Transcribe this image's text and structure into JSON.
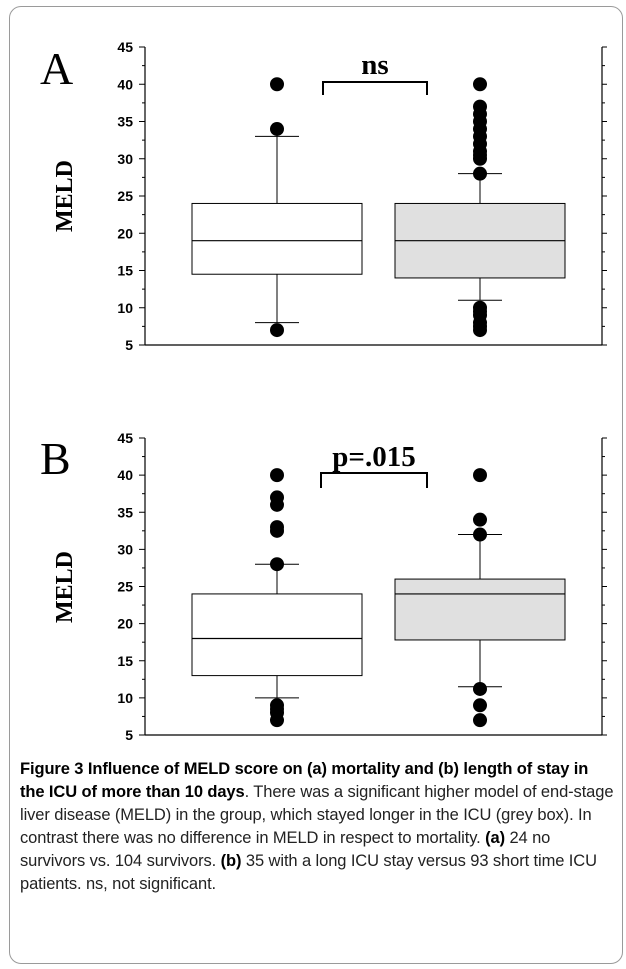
{
  "chart_data": [
    {
      "type": "box",
      "panel_label": "A",
      "ylabel": "MELD",
      "ylim": [
        5,
        45
      ],
      "yticks": [
        5,
        10,
        15,
        20,
        25,
        30,
        35,
        40,
        45
      ],
      "annotation": "ns",
      "series": [
        {
          "color": "#ffffff",
          "q1": 14.5,
          "median": 19,
          "q3": 24,
          "whisker_low": 8,
          "whisker_high": 33,
          "outliers": [
            7,
            34,
            40
          ]
        },
        {
          "color": "#e0e0e0",
          "q1": 14,
          "median": 19,
          "q3": 24,
          "whisker_low": 11,
          "whisker_high": 28,
          "outliers": [
            7,
            7.5,
            8,
            9,
            9.5,
            10,
            28,
            30,
            30.5,
            31,
            32,
            33,
            34,
            35,
            36,
            37,
            40
          ]
        }
      ]
    },
    {
      "type": "box",
      "panel_label": "B",
      "ylabel": "MELD",
      "ylim": [
        5,
        45
      ],
      "yticks": [
        5,
        10,
        15,
        20,
        25,
        30,
        35,
        40,
        45
      ],
      "annotation": "p=.015",
      "series": [
        {
          "color": "#ffffff",
          "q1": 13,
          "median": 18,
          "q3": 24,
          "whisker_low": 10,
          "whisker_high": 28,
          "outliers": [
            7,
            8,
            8.5,
            9,
            28,
            32.5,
            33,
            36,
            37,
            40
          ]
        },
        {
          "color": "#e0e0e0",
          "q1": 17.8,
          "median": 24,
          "q3": 26,
          "whisker_low": 11.5,
          "whisker_high": 32,
          "outliers": [
            7,
            9,
            11.2,
            32,
            34,
            40
          ]
        }
      ]
    }
  ],
  "caption": {
    "title": "Figure 3 Influence of MELD score on (a) mortality and (b) length of stay in the ICU of more than 10 days",
    "body1": ". There was a significant higher model of end-stage liver disease (MELD) in the group, which stayed longer in the ICU (grey box). In contrast there was no difference in MELD in respect to mortality. ",
    "ref_a": "(a)",
    "body2": " 24 no survivors vs. 104 survivors. ",
    "ref_b": "(b)",
    "body3": " 35 with a long ICU stay versus 93 short time ICU patients. ns, not significant."
  }
}
